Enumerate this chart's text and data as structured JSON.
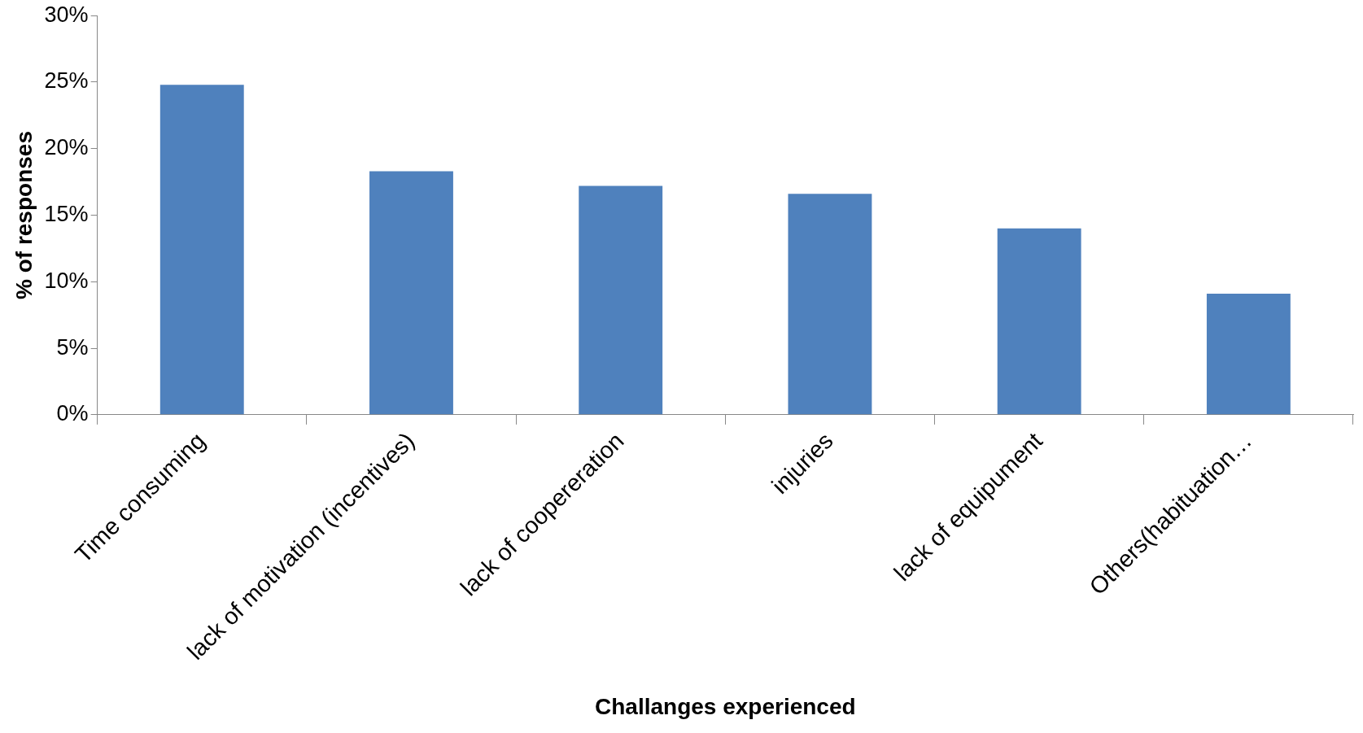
{
  "chart_data": {
    "type": "bar",
    "xlabel": "Challanges experienced",
    "ylabel": "% of responses",
    "categories": [
      "Time consuming",
      "lack of motivation (incentives)",
      "lack of coopereration",
      "injuries",
      "lack of equipument",
      "Others(habituation…"
    ],
    "values": [
      24.8,
      18.3,
      17.2,
      16.6,
      14.0,
      9.1
    ],
    "color": "#4f81bd",
    "ylim": [
      0,
      30
    ],
    "yticks": [
      {
        "value": 0,
        "label": "0%"
      },
      {
        "value": 5,
        "label": "5%"
      },
      {
        "value": 10,
        "label": "10%"
      },
      {
        "value": 15,
        "label": "15%"
      },
      {
        "value": 20,
        "label": "20%"
      },
      {
        "value": 25,
        "label": "25%"
      },
      {
        "value": 30,
        "label": "30%"
      }
    ],
    "grid": false,
    "legend": false
  }
}
